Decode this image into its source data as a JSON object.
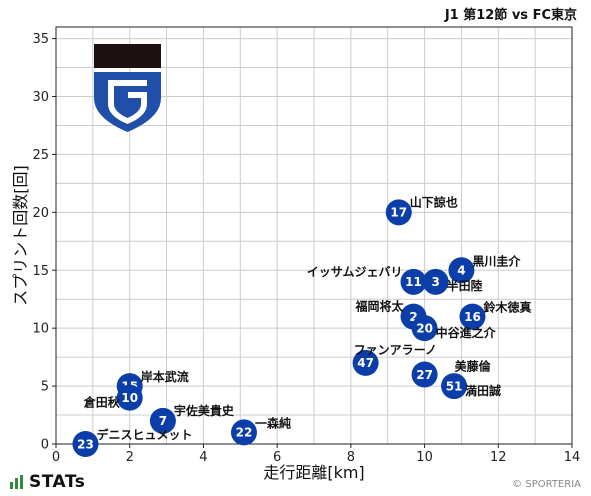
{
  "header": {
    "match": "J1 第12節 vs FC東京"
  },
  "footer": {
    "brand": "STATs",
    "copyright": "© SPORTERIA"
  },
  "colors": {
    "marker": "#0b3ea8",
    "grid": "#cccccc",
    "logo_dark": "#1c1010",
    "logo_blue": "#1f4fa8"
  },
  "chart_data": {
    "type": "scatter",
    "xlabel": "走行距離[km]",
    "ylabel": "スプリント回数[回]",
    "xlim": [
      0,
      14
    ],
    "ylim": [
      0,
      36
    ],
    "xticks": [
      0,
      2,
      4,
      6,
      8,
      10,
      12,
      14
    ],
    "yticks": [
      0,
      5,
      10,
      15,
      20,
      25,
      30,
      35
    ],
    "grid": true,
    "points": [
      {
        "number": "17",
        "name": "山下諒也",
        "x": 9.3,
        "y": 20
      },
      {
        "number": "4",
        "name": "黒川圭介",
        "x": 11.0,
        "y": 15
      },
      {
        "number": "11",
        "name": "イッサムジェバリ",
        "x": 9.7,
        "y": 14
      },
      {
        "number": "3",
        "name": "半田陸",
        "x": 10.3,
        "y": 14
      },
      {
        "number": "2",
        "name": "福岡将太",
        "x": 9.7,
        "y": 11
      },
      {
        "number": "16",
        "name": "鈴木徳真",
        "x": 11.3,
        "y": 11
      },
      {
        "number": "20",
        "name": "中谷進之介",
        "x": 10.0,
        "y": 10
      },
      {
        "number": "47",
        "name": "ファンアラーノ",
        "x": 8.4,
        "y": 7
      },
      {
        "number": "27",
        "name": "美藤倫",
        "x": 10.0,
        "y": 6
      },
      {
        "number": "51",
        "name": "満田誠",
        "x": 10.8,
        "y": 5
      },
      {
        "number": "15",
        "name": "岸本武流",
        "x": 2.0,
        "y": 5
      },
      {
        "number": "10",
        "name": "倉田秋",
        "x": 2.0,
        "y": 4
      },
      {
        "number": "7",
        "name": "宇佐美貴史",
        "x": 2.9,
        "y": 2
      },
      {
        "number": "22",
        "name": "一森純",
        "x": 5.1,
        "y": 1
      },
      {
        "number": "23",
        "name": "デニスヒュメット",
        "x": 0.8,
        "y": 0
      }
    ]
  }
}
